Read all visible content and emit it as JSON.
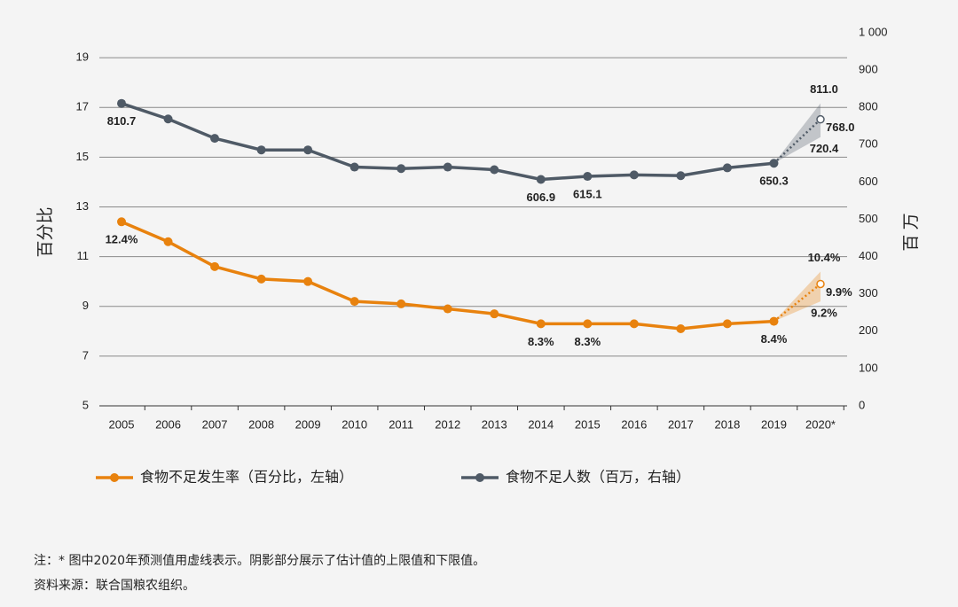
{
  "chart_data": {
    "type": "line",
    "y_label": "百分比",
    "y2_label": "百 万",
    "categories": [
      "2005",
      "2006",
      "2007",
      "2008",
      "2009",
      "2010",
      "2011",
      "2012",
      "2013",
      "2014",
      "2015",
      "2016",
      "2017",
      "2018",
      "2019",
      "2020*"
    ],
    "ylim": [
      5,
      20
    ],
    "yticks": [
      5,
      7,
      9,
      11,
      13,
      15,
      17,
      19
    ],
    "y2lim": [
      0,
      1000
    ],
    "y2ticks": [
      0,
      100,
      200,
      300,
      400,
      500,
      600,
      700,
      800,
      900,
      {
        "value": 1000,
        "label": "1 000"
      }
    ],
    "grid": true,
    "series": [
      {
        "name": "食物不足发生率（百分比，左轴）",
        "color": "#e8820e",
        "axis": "y",
        "values": [
          12.4,
          11.6,
          10.6,
          10.1,
          10.0,
          9.2,
          9.1,
          8.9,
          8.7,
          8.3,
          8.3,
          8.3,
          8.1,
          8.3,
          8.4,
          9.9
        ],
        "value_labels": [
          "12.4%",
          null,
          null,
          null,
          null,
          null,
          null,
          null,
          null,
          "8.3%",
          "8.3%",
          null,
          null,
          null,
          "8.4%",
          "9.9%"
        ],
        "band": {
          "lower": 9.2,
          "upper": 10.4,
          "lower_label": "9.2%",
          "upper_label": "10.4%"
        }
      },
      {
        "name": "食物不足人数（百万，右轴）",
        "color": "#4f5a66",
        "axis": "y2",
        "values": [
          810.7,
          769,
          717,
          686,
          686,
          640,
          636,
          640,
          633,
          606.9,
          615.1,
          619,
          617,
          638,
          650.3,
          768.0
        ],
        "value_labels": [
          "810.7",
          null,
          null,
          null,
          null,
          null,
          null,
          null,
          null,
          "606.9",
          "615.1",
          null,
          null,
          null,
          "650.3",
          "768.0"
        ],
        "band": {
          "lower": 720.4,
          "upper": 811.0,
          "lower_label": "720.4",
          "upper_label": "811.0"
        }
      }
    ],
    "notes": [
      "注：* 图中2020年预测值用虚线表示。阴影部分展示了估计值的上限值和下限值。",
      "资料来源：联合国粮农组织。"
    ]
  }
}
